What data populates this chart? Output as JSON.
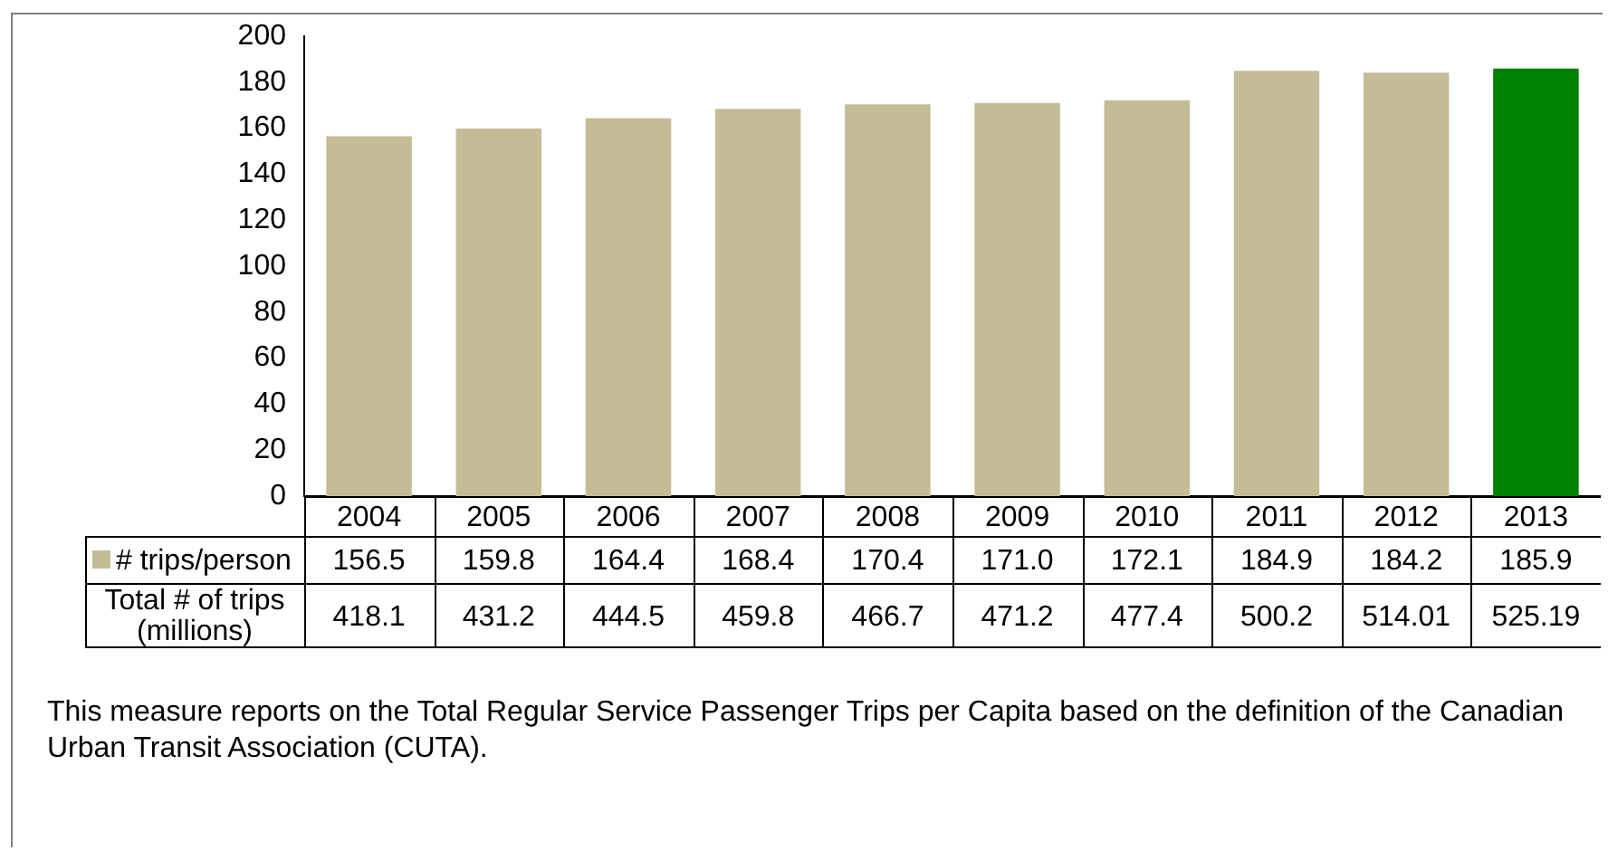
{
  "chart_data": {
    "type": "bar",
    "categories": [
      "2004",
      "2005",
      "2006",
      "2007",
      "2008",
      "2009",
      "2010",
      "2011",
      "2012",
      "2013"
    ],
    "series": [
      {
        "name": "# trips/person",
        "color": "#c4bc96",
        "colors": [
          "#c4bc96",
          "#c4bc96",
          "#c4bc96",
          "#c4bc96",
          "#c4bc96",
          "#c4bc96",
          "#c4bc96",
          "#c4bc96",
          "#c4bc96",
          "#008000"
        ],
        "values": [
          156.5,
          159.8,
          164.4,
          168.4,
          170.4,
          171.0,
          172.1,
          184.9,
          184.2,
          185.9
        ],
        "value_labels": [
          "156.5",
          "159.8",
          "164.4",
          "168.4",
          "170.4",
          "171.0",
          "172.1",
          "184.9",
          "184.2",
          "185.9"
        ]
      },
      {
        "name": "Total # of trips (millions)",
        "type": "other",
        "values": [
          null,
          null,
          null,
          null,
          null,
          null,
          null,
          null,
          null,
          null
        ],
        "value_labels": [
          "418.1",
          "431.2",
          "444.5",
          "459.8",
          "466.7",
          "471.2",
          "477.4",
          "500.2",
          "514.01",
          "525.19"
        ]
      }
    ],
    "ylim": [
      0,
      200
    ],
    "yticks": [
      0,
      20,
      40,
      60,
      80,
      100,
      120,
      140,
      160,
      180,
      200
    ],
    "grid": false,
    "legend": "bottom",
    "annotations": [
      "This measure reports on the Total Regular Service Passenger Trips per Capita based on the definition of the Canadian Urban Transit Association (CUTA)."
    ]
  }
}
